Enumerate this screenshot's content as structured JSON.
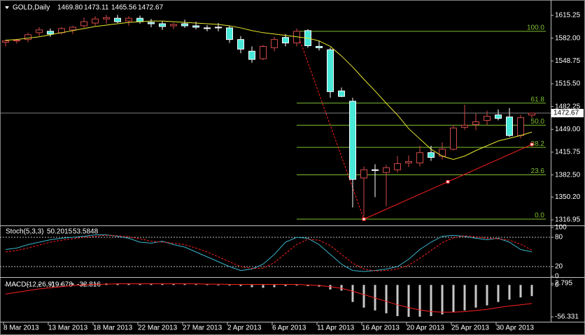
{
  "chart_data": [
    {
      "type": "candlestick",
      "title": "GOLD,Daily",
      "header_values": [
        "1469.80",
        "1473.11",
        "1465.56",
        "1472.67"
      ],
      "open": [
        1576,
        1578,
        1580,
        1590,
        1592,
        1590,
        1594,
        1600,
        1604,
        1610,
        1611,
        1607,
        1611,
        1605,
        1603,
        1600,
        1603,
        1600,
        1597,
        1598,
        1597,
        1580,
        1563,
        1552,
        1568,
        1583,
        1575,
        1593,
        1570,
        1565,
        1505,
        1490,
        1378,
        1390,
        1386,
        1390,
        1400,
        1400,
        1415,
        1410,
        1420,
        1452,
        1456,
        1462,
        1470,
        1467,
        1440,
        1469.8
      ],
      "high": [
        1580,
        1581,
        1590,
        1598,
        1596,
        1598,
        1600,
        1612,
        1614,
        1616,
        1616,
        1614,
        1615,
        1610,
        1607,
        1604,
        1609,
        1606,
        1601,
        1604,
        1600,
        1585,
        1570,
        1572,
        1584,
        1588,
        1596,
        1595,
        1578,
        1568,
        1510,
        1495,
        1395,
        1398,
        1397,
        1410,
        1411,
        1425,
        1425,
        1430,
        1455,
        1485,
        1472,
        1476,
        1478,
        1480,
        1470,
        1473.11
      ],
      "low": [
        1570,
        1574,
        1576,
        1585,
        1584,
        1587,
        1588,
        1597,
        1600,
        1603,
        1604,
        1600,
        1603,
        1598,
        1594,
        1595,
        1597,
        1595,
        1592,
        1592,
        1575,
        1560,
        1546,
        1550,
        1563,
        1570,
        1570,
        1568,
        1564,
        1495,
        1496,
        1335,
        1322,
        1350,
        1337,
        1386,
        1394,
        1395,
        1403,
        1405,
        1418,
        1448,
        1448,
        1455,
        1462,
        1438,
        1436,
        1465.56
      ],
      "close": [
        1578,
        1579,
        1587,
        1594,
        1588,
        1596,
        1598,
        1606,
        1610,
        1612,
        1606,
        1611,
        1606,
        1603,
        1599,
        1602,
        1600,
        1598,
        1596,
        1597,
        1580,
        1566,
        1551,
        1570,
        1580,
        1575,
        1592,
        1571,
        1568,
        1504,
        1497,
        1376,
        1390,
        1389,
        1393,
        1399,
        1402,
        1415,
        1408,
        1420,
        1451,
        1455,
        1460,
        1468,
        1465,
        1440,
        1466,
        1472.67
      ],
      "bull_color": "#d04848",
      "bear_color": "#48e8d8",
      "ma": {
        "color": "#e8e830",
        "values": [
          1579,
          1580,
          1582,
          1584,
          1587,
          1590,
          1593,
          1596,
          1599,
          1601,
          1603,
          1605,
          1606,
          1607,
          1607,
          1606,
          1605,
          1604,
          1603,
          1602,
          1600,
          1597,
          1593,
          1590,
          1588,
          1586,
          1584,
          1582,
          1578,
          1570,
          1556,
          1540,
          1522,
          1505,
          1487,
          1470,
          1450,
          1435,
          1420,
          1410,
          1405,
          1410,
          1418,
          1425,
          1432,
          1436,
          1440,
          1445
        ]
      },
      "fib": {
        "color": "#ff2020",
        "line_color": "#7fc030",
        "start": 26,
        "end": 32,
        "levels": [
          {
            "value": 100,
            "label": "100.0",
            "price": 1592
          },
          {
            "value": 61.8,
            "label": "61.8",
            "price": 1487.3
          },
          {
            "value": 50,
            "label": "50.0",
            "price": 1455
          },
          {
            "value": 38.2,
            "label": "38.2",
            "price": 1422.7
          },
          {
            "value": 23.6,
            "label": "23.6",
            "price": 1382.7
          },
          {
            "value": 0,
            "label": "0.0",
            "price": 1318
          }
        ]
      },
      "trendline": {
        "color": "#ff2020",
        "points": [
          {
            "bar": 32,
            "price": 1318
          },
          {
            "bar": 47,
            "price": 1427
          }
        ]
      },
      "ylim": [
        1309.85,
        1637.65
      ],
      "yticks": [
        1615.25,
        {
          "value": 1582,
          "label": "1582.00"
        },
        1548.75,
        {
          "value": 1515.5,
          "label": "1515.50"
        },
        1482.25,
        {
          "value": 1449,
          "label": "1449.00"
        },
        1415.75,
        {
          "value": 1382.5,
          "label": "1382.50"
        },
        {
          "value": 1350.2,
          "label": "1350.20"
        },
        1316.95
      ]
    },
    {
      "type": "line",
      "title": "Stoch(5,3,3)",
      "series": [
        {
          "color": "#3ab4cc",
          "dashed": false,
          "values": [
            55,
            58,
            65,
            70,
            75,
            78,
            80,
            82,
            85,
            85,
            82,
            78,
            70,
            68,
            72,
            65,
            60,
            50,
            40,
            30,
            20,
            12,
            15,
            25,
            45,
            70,
            80,
            78,
            65,
            45,
            25,
            12,
            10,
            12,
            15,
            20,
            35,
            55,
            70,
            82,
            84,
            82,
            78,
            75,
            78,
            70,
            55,
            50.2015
          ]
        },
        {
          "color": "#ff2020",
          "dashed": true,
          "values": [
            50,
            53,
            58,
            64,
            70,
            74,
            77,
            80,
            82,
            84,
            83,
            81,
            77,
            72,
            70,
            68,
            65,
            58,
            50,
            40,
            30,
            20,
            16,
            17,
            28,
            47,
            65,
            76,
            74,
            63,
            45,
            27,
            15,
            11,
            12,
            15,
            23,
            37,
            53,
            69,
            79,
            83,
            81,
            78,
            77,
            74,
            66,
            53.5848
          ]
        }
      ],
      "levels": [
        80,
        20
      ],
      "ylim": [
        0,
        100
      ],
      "yticks": [
        100,
        80,
        20,
        0
      ]
    },
    {
      "type": "macd",
      "title": "MACD(12,26,9)",
      "histogram": {
        "color": "#c8c8c8",
        "values": [
          0.5,
          1,
          1.5,
          2,
          2.2,
          2.5,
          2.7,
          2.795,
          2.7,
          2.6,
          2.5,
          2.3,
          2.2,
          2,
          2,
          1.8,
          1.5,
          1.2,
          1,
          0.5,
          -0.5,
          -2,
          -4,
          -5,
          -4,
          -2,
          -1,
          -2,
          -3,
          -8,
          -10,
          -30,
          -40,
          -45,
          -50,
          -55,
          -56.331,
          -56,
          -55,
          -52,
          -48,
          -45,
          -40,
          -36,
          -30,
          -26,
          -22,
          -19.678
        ]
      },
      "signal": {
        "color": "#ff2020",
        "values": [
          -16,
          -13,
          -10,
          -7,
          -5,
          -3,
          -1,
          0,
          1,
          1.5,
          2,
          2,
          2,
          2,
          2,
          2,
          2,
          2,
          1.5,
          1.5,
          1,
          1,
          1,
          1,
          1,
          1,
          1,
          0,
          -1,
          -3,
          -6,
          -11,
          -17,
          -23,
          -29,
          -35,
          -40,
          -44,
          -47,
          -48,
          -48,
          -47,
          -45,
          -43,
          -40,
          -37,
          -35,
          -32.816
        ]
      },
      "ylim": [
        -63.7,
        10.2
      ],
      "yticks": [
        2.795,
        0,
        -56.331
      ],
      "categories": [
        "8 Mar 2013",
        null,
        null,
        null,
        "13 Mar 2013",
        null,
        null,
        null,
        "18 Mar 2013",
        null,
        null,
        null,
        "22 Mar 2013",
        null,
        null,
        null,
        "27 Mar 2013",
        null,
        null,
        null,
        "2 Apr 2013",
        null,
        null,
        null,
        "6 Apr 2013",
        null,
        null,
        null,
        "11 Apr 2013",
        null,
        null,
        null,
        "16 Apr 2013",
        null,
        null,
        null,
        "20 Apr 2013",
        null,
        null,
        null,
        "25 Apr 2013",
        null,
        null,
        null,
        "30 Apr 2013",
        null,
        null,
        null
      ]
    }
  ]
}
